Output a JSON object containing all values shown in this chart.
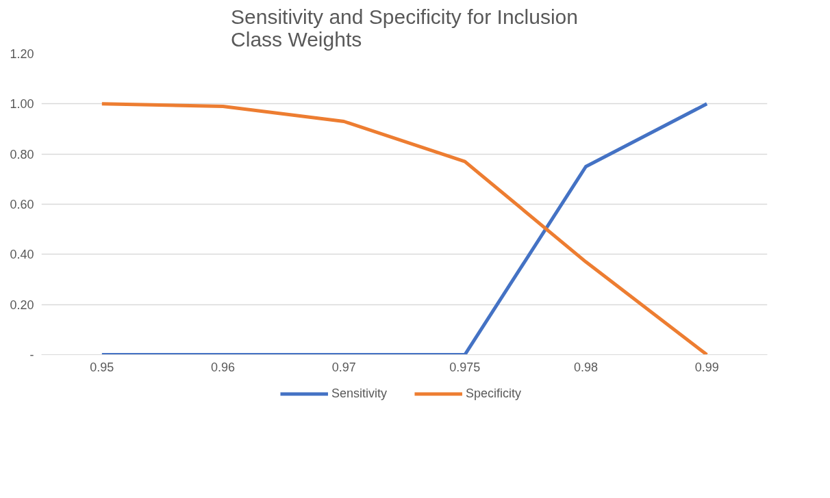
{
  "chart_data": {
    "type": "line",
    "title": "Sensitivity and Specificity for Inclusion Class Weights",
    "categories": [
      "0.95",
      "0.96",
      "0.97",
      "0.975",
      "0.98",
      "0.99"
    ],
    "series": [
      {
        "name": "Sensitivity",
        "color": "#4472c4",
        "values": [
          0,
          0,
          0,
          0,
          0.75,
          1.0
        ]
      },
      {
        "name": "Specificity",
        "color": "#ed7d31",
        "values": [
          1.0,
          0.99,
          0.93,
          0.77,
          0.37,
          0.0
        ]
      }
    ],
    "ylim": [
      0,
      1.2
    ],
    "yticks": [
      {
        "value": 0,
        "label": "-"
      },
      {
        "value": 0.2,
        "label": "0.20"
      },
      {
        "value": 0.4,
        "label": "0.40"
      },
      {
        "value": 0.6,
        "label": "0.60"
      },
      {
        "value": 0.8,
        "label": "0.80"
      },
      {
        "value": 1.0,
        "label": "1.00"
      },
      {
        "value": 1.2,
        "label": "1.20"
      }
    ],
    "grid": "y",
    "legend": "bottom",
    "marker": "none",
    "line_style": "solid"
  }
}
